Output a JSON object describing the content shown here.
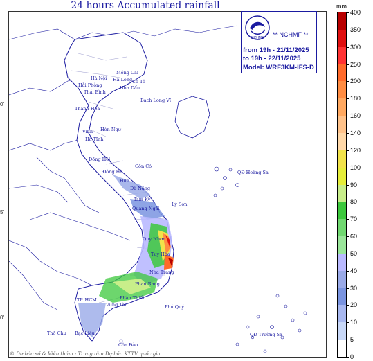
{
  "title": "24 hours Accumulated rainfall",
  "brand": "** NCHMF **",
  "logo_text": "NCHMF",
  "info": {
    "line1": "from 19h - 21/11/2025",
    "line2": "to 19h - 22/11/2025",
    "line3": "Model: WRF3KM-IFS-D"
  },
  "lat_labels": [
    "0'",
    "5'",
    "0'"
  ],
  "colorbar": {
    "unit": "mm",
    "labels": [
      "400",
      "350",
      "300",
      "250",
      "200",
      "180",
      "160",
      "140",
      "120",
      "100",
      "90",
      "80",
      "70",
      "60",
      "50",
      "40",
      "30",
      "20",
      "10",
      "5",
      "0"
    ],
    "colors": [
      "#b80000",
      "#e01010",
      "#ff3333",
      "#ff6a2a",
      "#ff8c42",
      "#ffa860",
      "#ffc28a",
      "#ffd8a8",
      "#f2e34a",
      "#e6ee3a",
      "#c8ee8a",
      "#3cc83c",
      "#70d870",
      "#9ae69a",
      "#b9b9ff",
      "#9aaae8",
      "#7a94e0",
      "#a8b8f0",
      "#c8d8f8",
      "#ffffff"
    ]
  },
  "places": {
    "ha_noi": "Hà Nội",
    "hai_phong": "Hải Phòng",
    "thai_binh": "Thái Bình",
    "mong_cai": "Móng Cái",
    "ha_long": "Hạ Long",
    "co_to": "Cô Tô",
    "bach_long_vi": "Bạch Long Vĩ",
    "hon_dau": "Hòn Dấu",
    "thanh_hoa": "Thanh Hóa",
    "vinh": "Vinh",
    "ha_tinh": "Hà Tĩnh",
    "hon_ngu": "Hòn Ngư",
    "dong_hoi": "Đồng Hới",
    "dong_ha": "Đông Hà",
    "hue": "Huế",
    "da_nang": "Đà Nẵng",
    "con_co": "Cồn Cỏ",
    "tam_ky": "Tam Kỳ",
    "quang_ngai": "Quảng Ngãi",
    "ly_son": "Lý Sơn",
    "hoang_sa": "QĐ Hoàng Sa",
    "quy_nhon": "Quy Nhơn",
    "tuy_hoa": "Tuy Hòa",
    "nha_trang": "Nha Trang",
    "phan_rang": "Phan Rang",
    "phan_thiet": "Phan Thiết",
    "phu_quy": "Phú Quý",
    "tp_hcm": "TP. HCM",
    "vung_tau": "Vũng Tàu",
    "tho_chu": "Thổ Chu",
    "bac_lieu": "Bạc Liêu",
    "con_dao": "Côn Đảo",
    "truong_sa": "QĐ Trường Sa"
  },
  "credit": "© Dự báo số & Viễn thám - Trung tâm Dự báo KTTV quốc gia"
}
